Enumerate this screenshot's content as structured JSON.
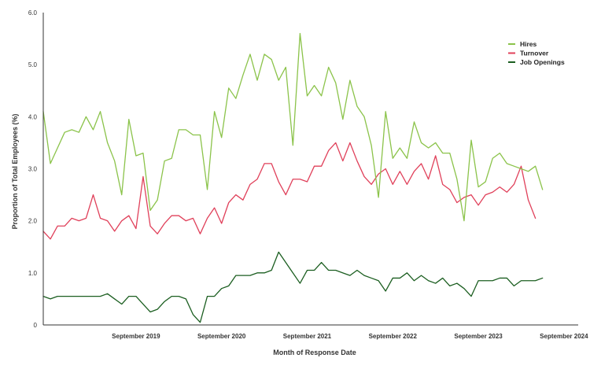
{
  "chart_data": {
    "type": "line",
    "title": "",
    "xlabel": "Month of Response Date",
    "ylabel": "Proportion of Total Employees (%)",
    "ylim": [
      0,
      6
    ],
    "yticks": [
      "0",
      "1.0",
      "2.0",
      "3.0",
      "4.0",
      "5.0",
      "6.0"
    ],
    "x_start": "2018-08",
    "x_end": "2024-11",
    "xticks": [
      {
        "label": "September 2019",
        "date": "2019-09"
      },
      {
        "label": "September 2020",
        "date": "2020-09"
      },
      {
        "label": "September 2021",
        "date": "2021-09"
      },
      {
        "label": "September 2022",
        "date": "2022-09"
      },
      {
        "label": "September 2023",
        "date": "2023-09"
      },
      {
        "label": "September 2024",
        "date": "2024-09"
      }
    ],
    "grid": false,
    "legend_position": "top-right",
    "series": [
      {
        "name": "Hires",
        "color": "#8bc34a",
        "start": "2018-08",
        "values": [
          4.1,
          3.1,
          3.4,
          3.7,
          3.75,
          3.7,
          4.0,
          3.75,
          4.1,
          3.5,
          3.15,
          2.5,
          3.95,
          3.25,
          3.3,
          2.2,
          2.4,
          3.15,
          3.2,
          3.75,
          3.75,
          3.65,
          3.65,
          2.6,
          4.1,
          3.6,
          4.55,
          4.35,
          4.8,
          5.2,
          4.7,
          5.2,
          5.1,
          4.7,
          4.95,
          3.45,
          5.6,
          4.4,
          4.6,
          4.4,
          4.95,
          4.65,
          3.95,
          4.7,
          4.2,
          4.0,
          3.45,
          2.45,
          4.1,
          3.2,
          3.4,
          3.2,
          3.9,
          3.5,
          3.4,
          3.5,
          3.3,
          3.3,
          2.8,
          2.0,
          3.55,
          2.65,
          2.75,
          3.2,
          3.3,
          3.1,
          3.05,
          3.0,
          2.95,
          3.05,
          2.6
        ]
      },
      {
        "name": "Turnover",
        "color": "#e0405a",
        "start": "2018-08",
        "values": [
          1.8,
          1.65,
          1.9,
          1.9,
          2.05,
          2.0,
          2.05,
          2.5,
          2.05,
          2.0,
          1.8,
          2.0,
          2.1,
          1.85,
          2.85,
          1.9,
          1.75,
          1.95,
          2.1,
          2.1,
          2.0,
          2.05,
          1.75,
          2.05,
          2.25,
          1.95,
          2.35,
          2.5,
          2.4,
          2.7,
          2.8,
          3.1,
          3.1,
          2.75,
          2.5,
          2.8,
          2.8,
          2.75,
          3.05,
          3.05,
          3.35,
          3.5,
          3.15,
          3.5,
          3.15,
          2.85,
          2.7,
          2.9,
          3.0,
          2.7,
          2.95,
          2.7,
          2.95,
          3.1,
          2.8,
          3.25,
          2.7,
          2.6,
          2.35,
          2.45,
          2.5,
          2.3,
          2.5,
          2.55,
          2.65,
          2.55,
          2.7,
          3.05,
          2.4,
          2.05
        ]
      },
      {
        "name": "Job Openings",
        "color": "#1b5e20",
        "start": "2018-08",
        "values": [
          0.55,
          0.5,
          0.55,
          0.55,
          0.55,
          0.55,
          0.55,
          0.55,
          0.55,
          0.6,
          0.5,
          0.4,
          0.55,
          0.55,
          0.4,
          0.25,
          0.3,
          0.45,
          0.55,
          0.55,
          0.5,
          0.2,
          0.05,
          0.55,
          0.55,
          0.7,
          0.75,
          0.95,
          0.95,
          0.95,
          1.0,
          1.0,
          1.05,
          1.4,
          1.2,
          1.0,
          0.8,
          1.05,
          1.05,
          1.2,
          1.05,
          1.05,
          1.0,
          0.95,
          1.05,
          0.95,
          0.9,
          0.85,
          0.65,
          0.9,
          0.9,
          1.0,
          0.85,
          0.95,
          0.85,
          0.8,
          0.9,
          0.75,
          0.8,
          0.7,
          0.55,
          0.85,
          0.85,
          0.85,
          0.9,
          0.9,
          0.75,
          0.85,
          0.85,
          0.85,
          0.9
        ]
      }
    ]
  }
}
